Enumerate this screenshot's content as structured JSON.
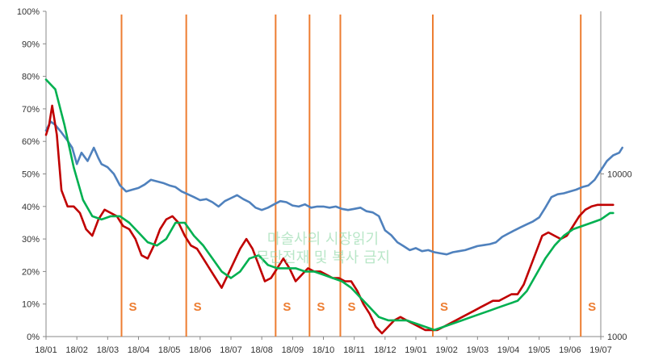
{
  "chart_data": {
    "type": "line",
    "x_labels": [
      "18/01",
      "18/02",
      "18/03",
      "18/04",
      "18/05",
      "18/06",
      "18/07",
      "18/08",
      "18/09",
      "18/10",
      "18/11",
      "18/12",
      "19/01",
      "19/02",
      "19/03",
      "19/04",
      "19/05",
      "19/06",
      "19/07"
    ],
    "y_left": {
      "ticks": [
        "0%",
        "10%",
        "20%",
        "30%",
        "40%",
        "50%",
        "60%",
        "70%",
        "80%",
        "90%",
        "100%"
      ],
      "ylim": [
        0,
        100
      ]
    },
    "y_right": {
      "scale": "log",
      "ticks": [
        "1000",
        "10000"
      ],
      "ylim": [
        1000,
        100000
      ]
    },
    "grid": false,
    "legend": "none",
    "watermark": [
      "마술사의 시장읽기",
      "무단전재 및 복사 금지"
    ],
    "series": [
      {
        "axis": "right",
        "color": "#4F81BD",
        "points": [
          [
            0,
            18500
          ],
          [
            0.15,
            21000
          ],
          [
            0.3,
            20000
          ],
          [
            0.5,
            18000
          ],
          [
            0.7,
            16000
          ],
          [
            0.85,
            14500
          ],
          [
            1.0,
            11500
          ],
          [
            1.15,
            13500
          ],
          [
            1.35,
            12000
          ],
          [
            1.55,
            14500
          ],
          [
            1.7,
            12500
          ],
          [
            1.8,
            11500
          ],
          [
            2.0,
            11000
          ],
          [
            2.2,
            10000
          ],
          [
            2.4,
            8500
          ],
          [
            2.6,
            7800
          ],
          [
            2.8,
            8000
          ],
          [
            3.0,
            8200
          ],
          [
            3.2,
            8600
          ],
          [
            3.4,
            9200
          ],
          [
            3.6,
            9000
          ],
          [
            3.8,
            8800
          ],
          [
            4.0,
            8500
          ],
          [
            4.2,
            8300
          ],
          [
            4.4,
            7800
          ],
          [
            4.6,
            7500
          ],
          [
            4.8,
            7200
          ],
          [
            5.0,
            6900
          ],
          [
            5.2,
            7000
          ],
          [
            5.4,
            6700
          ],
          [
            5.6,
            6300
          ],
          [
            5.8,
            6800
          ],
          [
            6.0,
            7100
          ],
          [
            6.2,
            7400
          ],
          [
            6.4,
            7000
          ],
          [
            6.6,
            6700
          ],
          [
            6.8,
            6200
          ],
          [
            7.0,
            6000
          ],
          [
            7.2,
            6200
          ],
          [
            7.4,
            6500
          ],
          [
            7.6,
            6800
          ],
          [
            7.8,
            6700
          ],
          [
            8.0,
            6400
          ],
          [
            8.2,
            6300
          ],
          [
            8.4,
            6500
          ],
          [
            8.6,
            6200
          ],
          [
            8.8,
            6300
          ],
          [
            9.0,
            6300
          ],
          [
            9.2,
            6200
          ],
          [
            9.4,
            6300
          ],
          [
            9.6,
            6100
          ],
          [
            9.8,
            6000
          ],
          [
            10.0,
            6100
          ],
          [
            10.2,
            6200
          ],
          [
            10.4,
            5900
          ],
          [
            10.6,
            5800
          ],
          [
            10.8,
            5500
          ],
          [
            11.0,
            4500
          ],
          [
            11.2,
            4200
          ],
          [
            11.4,
            3800
          ],
          [
            11.6,
            3600
          ],
          [
            11.8,
            3400
          ],
          [
            12.0,
            3500
          ],
          [
            12.2,
            3350
          ],
          [
            12.4,
            3400
          ],
          [
            12.6,
            3300
          ],
          [
            12.8,
            3250
          ],
          [
            13.0,
            3200
          ],
          [
            13.2,
            3300
          ],
          [
            13.4,
            3350
          ],
          [
            13.6,
            3400
          ],
          [
            13.8,
            3500
          ],
          [
            14.0,
            3600
          ],
          [
            14.2,
            3650
          ],
          [
            14.4,
            3700
          ],
          [
            14.6,
            3800
          ],
          [
            14.8,
            4100
          ],
          [
            15.0,
            4300
          ],
          [
            15.2,
            4500
          ],
          [
            15.4,
            4700
          ],
          [
            15.6,
            4900
          ],
          [
            15.8,
            5100
          ],
          [
            16.0,
            5400
          ],
          [
            16.2,
            6200
          ],
          [
            16.4,
            7200
          ],
          [
            16.6,
            7500
          ],
          [
            16.8,
            7600
          ],
          [
            17.0,
            7800
          ],
          [
            17.2,
            8000
          ],
          [
            17.4,
            8300
          ],
          [
            17.6,
            8500
          ],
          [
            17.8,
            9200
          ],
          [
            18.0,
            10500
          ],
          [
            18.2,
            12000
          ],
          [
            18.4,
            13000
          ],
          [
            18.6,
            13500
          ],
          [
            18.7,
            14500
          ]
        ]
      },
      {
        "axis": "left",
        "color": "#C00000",
        "points": [
          [
            0,
            62
          ],
          [
            0.1,
            65
          ],
          [
            0.2,
            71
          ],
          [
            0.35,
            62
          ],
          [
            0.5,
            45
          ],
          [
            0.7,
            40
          ],
          [
            0.9,
            40
          ],
          [
            1.1,
            38
          ],
          [
            1.3,
            33
          ],
          [
            1.5,
            31
          ],
          [
            1.7,
            36
          ],
          [
            1.9,
            39
          ],
          [
            2.1,
            38
          ],
          [
            2.3,
            37
          ],
          [
            2.5,
            34
          ],
          [
            2.7,
            33
          ],
          [
            2.9,
            30
          ],
          [
            3.1,
            25
          ],
          [
            3.3,
            24
          ],
          [
            3.5,
            28
          ],
          [
            3.7,
            33
          ],
          [
            3.9,
            36
          ],
          [
            4.1,
            37
          ],
          [
            4.3,
            35
          ],
          [
            4.5,
            31
          ],
          [
            4.7,
            28
          ],
          [
            4.9,
            27
          ],
          [
            5.1,
            24
          ],
          [
            5.3,
            21
          ],
          [
            5.5,
            18
          ],
          [
            5.7,
            15
          ],
          [
            5.9,
            19
          ],
          [
            6.1,
            23
          ],
          [
            6.3,
            27
          ],
          [
            6.5,
            30
          ],
          [
            6.7,
            27
          ],
          [
            6.9,
            22
          ],
          [
            7.1,
            17
          ],
          [
            7.3,
            18
          ],
          [
            7.5,
            21
          ],
          [
            7.7,
            24
          ],
          [
            7.9,
            21
          ],
          [
            8.1,
            17
          ],
          [
            8.3,
            19
          ],
          [
            8.5,
            21
          ],
          [
            8.7,
            20
          ],
          [
            8.9,
            20
          ],
          [
            9.1,
            19
          ],
          [
            9.3,
            18
          ],
          [
            9.5,
            18
          ],
          [
            9.7,
            17
          ],
          [
            9.9,
            17
          ],
          [
            10.1,
            14
          ],
          [
            10.3,
            10
          ],
          [
            10.5,
            7
          ],
          [
            10.7,
            3
          ],
          [
            10.9,
            1
          ],
          [
            11.1,
            3
          ],
          [
            11.3,
            5
          ],
          [
            11.5,
            6
          ],
          [
            11.7,
            5
          ],
          [
            11.9,
            4
          ],
          [
            12.1,
            3
          ],
          [
            12.3,
            2
          ],
          [
            12.5,
            2
          ],
          [
            12.7,
            2
          ],
          [
            12.9,
            3
          ],
          [
            13.1,
            4
          ],
          [
            13.3,
            5
          ],
          [
            13.5,
            6
          ],
          [
            13.7,
            7
          ],
          [
            13.9,
            8
          ],
          [
            14.1,
            9
          ],
          [
            14.3,
            10
          ],
          [
            14.5,
            11
          ],
          [
            14.7,
            11
          ],
          [
            14.9,
            12
          ],
          [
            15.1,
            13
          ],
          [
            15.3,
            13
          ],
          [
            15.5,
            16
          ],
          [
            15.7,
            21
          ],
          [
            15.9,
            26
          ],
          [
            16.1,
            31
          ],
          [
            16.3,
            32
          ],
          [
            16.5,
            31
          ],
          [
            16.7,
            30
          ],
          [
            16.9,
            31
          ],
          [
            17.1,
            34
          ],
          [
            17.3,
            37
          ],
          [
            17.5,
            39
          ],
          [
            17.7,
            40
          ],
          [
            17.9,
            40.5
          ],
          [
            18.1,
            40.5
          ],
          [
            18.4,
            40.5
          ]
        ]
      },
      {
        "axis": "left",
        "color": "#00B050",
        "points": [
          [
            0,
            79
          ],
          [
            0.3,
            76
          ],
          [
            0.6,
            65
          ],
          [
            0.9,
            52
          ],
          [
            1.2,
            42
          ],
          [
            1.5,
            37
          ],
          [
            1.8,
            36
          ],
          [
            2.1,
            37
          ],
          [
            2.4,
            37
          ],
          [
            2.7,
            35
          ],
          [
            3.0,
            32
          ],
          [
            3.3,
            29
          ],
          [
            3.6,
            28
          ],
          [
            3.9,
            30
          ],
          [
            4.2,
            35
          ],
          [
            4.5,
            35
          ],
          [
            4.8,
            31
          ],
          [
            5.1,
            28
          ],
          [
            5.4,
            24
          ],
          [
            5.7,
            20
          ],
          [
            6.0,
            18
          ],
          [
            6.3,
            20
          ],
          [
            6.6,
            24
          ],
          [
            6.9,
            25
          ],
          [
            7.2,
            22
          ],
          [
            7.5,
            21
          ],
          [
            7.8,
            21
          ],
          [
            8.1,
            21
          ],
          [
            8.4,
            20
          ],
          [
            8.7,
            20
          ],
          [
            9.0,
            19
          ],
          [
            9.3,
            18
          ],
          [
            9.6,
            17
          ],
          [
            9.9,
            15
          ],
          [
            10.2,
            12
          ],
          [
            10.5,
            9
          ],
          [
            10.8,
            6
          ],
          [
            11.1,
            5
          ],
          [
            11.4,
            5
          ],
          [
            11.7,
            5
          ],
          [
            12.0,
            4
          ],
          [
            12.3,
            3
          ],
          [
            12.6,
            2
          ],
          [
            12.9,
            3
          ],
          [
            13.2,
            4
          ],
          [
            13.5,
            5
          ],
          [
            13.8,
            6
          ],
          [
            14.1,
            7
          ],
          [
            14.4,
            8
          ],
          [
            14.7,
            9
          ],
          [
            15.0,
            10
          ],
          [
            15.3,
            11
          ],
          [
            15.6,
            14
          ],
          [
            15.9,
            19
          ],
          [
            16.2,
            24
          ],
          [
            16.5,
            28
          ],
          [
            16.8,
            31
          ],
          [
            17.1,
            33
          ],
          [
            17.4,
            34
          ],
          [
            17.7,
            35
          ],
          [
            18.0,
            36
          ],
          [
            18.3,
            38
          ],
          [
            18.4,
            38
          ]
        ]
      }
    ],
    "markers": [
      {
        "x": 2.45,
        "label": "S"
      },
      {
        "x": 4.55,
        "label": "S"
      },
      {
        "x": 7.45,
        "label": "S"
      },
      {
        "x": 8.55,
        "label": "S"
      },
      {
        "x": 9.55,
        "label": "S"
      },
      {
        "x": 12.55,
        "label": "S"
      },
      {
        "x": 17.35,
        "label": "S"
      }
    ],
    "marker_color": "#ED7D31"
  }
}
